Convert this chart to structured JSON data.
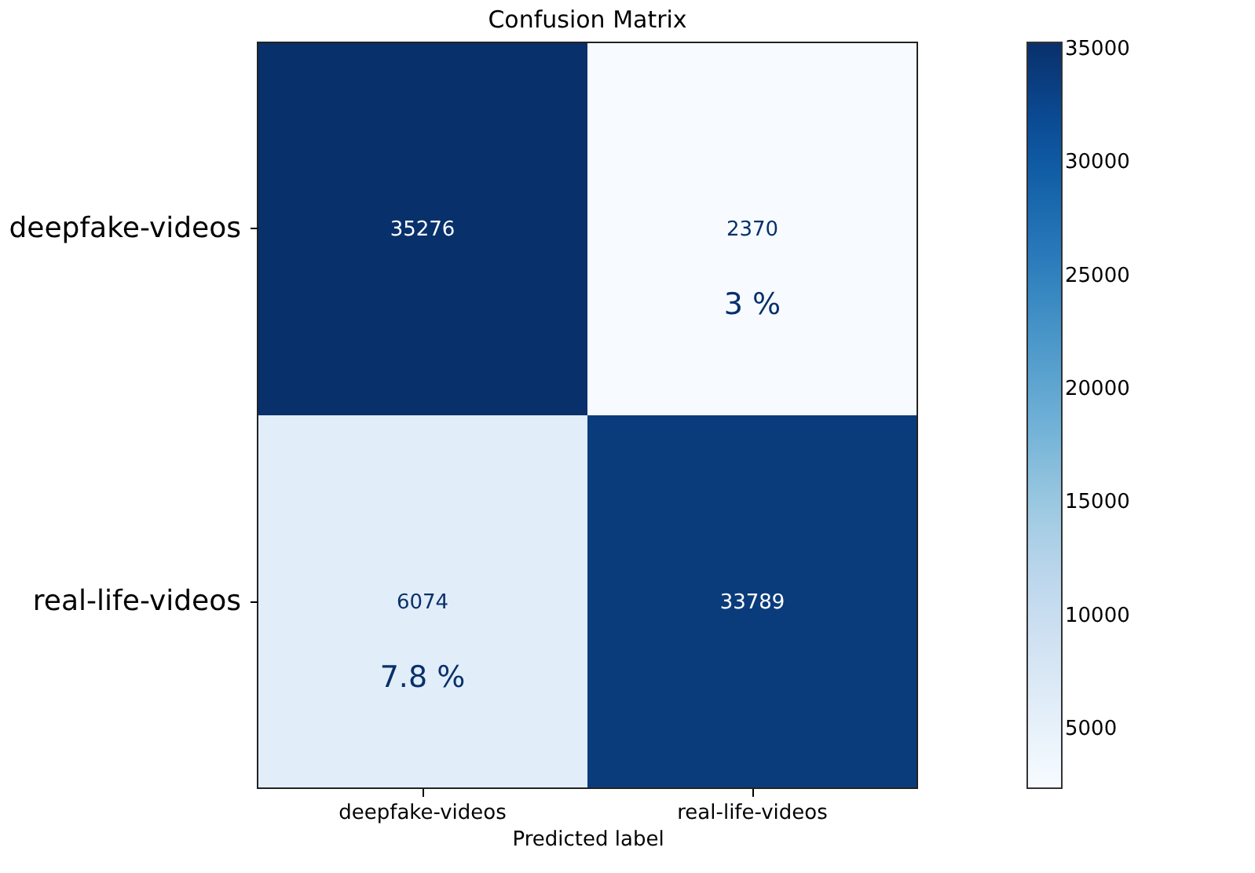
{
  "chart_data": {
    "type": "heatmap",
    "title": "Confusion Matrix",
    "xlabel": "Predicted label",
    "categories": [
      "deepfake-videos",
      "real-life-videos"
    ],
    "y_categories": [
      "deepfake-videos",
      "real-life-videos"
    ],
    "cells": [
      [
        35276,
        2370
      ],
      [
        6074,
        33789
      ]
    ],
    "data_labels": true,
    "clim": [
      2370,
      35276
    ],
    "cticks": [
      5000,
      10000,
      15000,
      20000,
      25000,
      30000,
      35000
    ],
    "annotations": [
      "3 %",
      "7.8 %"
    ]
  }
}
